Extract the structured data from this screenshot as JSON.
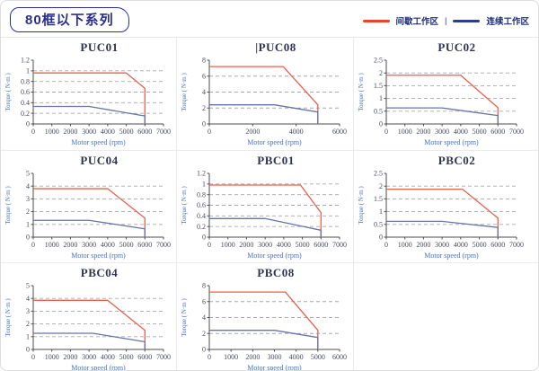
{
  "header": {
    "series_badge": "80框以下系列"
  },
  "legend": {
    "intermittent_label": "间歇工作区",
    "separator": "|",
    "continuous_label": "连续工作区",
    "intermittent_color": "#e8432c",
    "continuous_color": "#27408b"
  },
  "colors": {
    "accent_navy": "#2b2f90",
    "axis_label_blue": "#4472c4",
    "tick_label": "#474b5e",
    "axis_line": "#4d4d4d",
    "grid_dash": "#a9a9a9",
    "red_line": "#e8604a",
    "blue_line": "#6674a8"
  },
  "chart_data": [
    {
      "type": "line",
      "title": "PUC01",
      "title_prefix": "",
      "xlabel": "Motor speed (rpm)",
      "ylabel": "Torque ( N·m )",
      "xlim": [
        0,
        7000
      ],
      "ylim": [
        0,
        1.2
      ],
      "xticks": [
        0,
        1000,
        2000,
        3000,
        4000,
        5000,
        6000,
        7000
      ],
      "yticks": [
        0,
        0.2,
        0.4,
        0.6,
        0.8,
        1,
        1.2
      ],
      "series": [
        {
          "name": "间歇工作区",
          "color": "#e8604a",
          "points": [
            [
              0,
              0.96
            ],
            [
              5000,
              0.96
            ],
            [
              6000,
              0.67
            ],
            [
              6000,
              0
            ]
          ]
        },
        {
          "name": "连续工作区",
          "color": "#6674a8",
          "points": [
            [
              0,
              0.33
            ],
            [
              3000,
              0.33
            ],
            [
              6000,
              0.15
            ],
            [
              6000,
              0
            ]
          ]
        }
      ]
    },
    {
      "type": "line",
      "title": "PUC08",
      "title_prefix": "|",
      "xlabel": "Motor speed (rpm)",
      "ylabel": "Torque ( N·m )",
      "xlim": [
        0,
        6000
      ],
      "ylim": [
        0,
        8
      ],
      "xticks": [
        0,
        2000,
        4000,
        6000
      ],
      "yticks": [
        0,
        2,
        4,
        6,
        8
      ],
      "series": [
        {
          "name": "间歇工作区",
          "color": "#e8604a",
          "points": [
            [
              0,
              7.2
            ],
            [
              3400,
              7.2
            ],
            [
              5000,
              2.4
            ],
            [
              5000,
              0
            ]
          ]
        },
        {
          "name": "连续工作区",
          "color": "#6674a8",
          "points": [
            [
              0,
              2.4
            ],
            [
              3000,
              2.4
            ],
            [
              5000,
              1.5
            ],
            [
              5000,
              0
            ]
          ]
        }
      ]
    },
    {
      "type": "line",
      "title": "PUC02",
      "title_prefix": "",
      "xlabel": "Motor speed (rpm)",
      "ylabel": "Torque ( N·m )",
      "xlim": [
        0,
        7000
      ],
      "ylim": [
        0,
        2.5
      ],
      "xticks": [
        0,
        1000,
        2000,
        3000,
        4000,
        5000,
        6000,
        7000
      ],
      "yticks": [
        0,
        0.5,
        1,
        1.5,
        2,
        2.5
      ],
      "series": [
        {
          "name": "间歇工作区",
          "color": "#e8604a",
          "points": [
            [
              0,
              1.91
            ],
            [
              4000,
              1.91
            ],
            [
              6000,
              0.64
            ],
            [
              6000,
              0
            ]
          ]
        },
        {
          "name": "连续工作区",
          "color": "#6674a8",
          "points": [
            [
              0,
              0.63
            ],
            [
              3000,
              0.63
            ],
            [
              6000,
              0.33
            ],
            [
              6000,
              0
            ]
          ]
        }
      ]
    },
    {
      "type": "line",
      "title": "PUC04",
      "title_prefix": "",
      "xlabel": "Motor speed (rpm)",
      "ylabel": "Torque ( N·m )",
      "xlim": [
        0,
        7000
      ],
      "ylim": [
        0,
        5
      ],
      "xticks": [
        0,
        1000,
        2000,
        3000,
        4000,
        5000,
        6000,
        7000
      ],
      "yticks": [
        0,
        1,
        2,
        3,
        4,
        5
      ],
      "series": [
        {
          "name": "间歇工作区",
          "color": "#e8604a",
          "points": [
            [
              0,
              3.8
            ],
            [
              4000,
              3.8
            ],
            [
              6000,
              1.5
            ],
            [
              6000,
              0
            ]
          ]
        },
        {
          "name": "连续工作区",
          "color": "#6674a8",
          "points": [
            [
              0,
              1.32
            ],
            [
              3000,
              1.32
            ],
            [
              6000,
              0.65
            ],
            [
              6000,
              0
            ]
          ]
        }
      ]
    },
    {
      "type": "line",
      "title": "PBC01",
      "title_prefix": "",
      "xlabel": "Motor speed (rpm)",
      "ylabel": "Torque ( N·m )",
      "xlim": [
        0,
        7000
      ],
      "ylim": [
        0,
        1.2
      ],
      "xticks": [
        0,
        1000,
        2000,
        3000,
        4000,
        5000,
        6000,
        7000
      ],
      "yticks": [
        0,
        0.2,
        0.4,
        0.6,
        0.8,
        1,
        1.2
      ],
      "series": [
        {
          "name": "间歇工作区",
          "color": "#e8604a",
          "points": [
            [
              0,
              0.98
            ],
            [
              4900,
              0.98
            ],
            [
              6000,
              0.46
            ],
            [
              6000,
              0
            ]
          ]
        },
        {
          "name": "连续工作区",
          "color": "#6674a8",
          "points": [
            [
              0,
              0.35
            ],
            [
              3000,
              0.35
            ],
            [
              6000,
              0.13
            ],
            [
              6000,
              0
            ]
          ]
        }
      ]
    },
    {
      "type": "line",
      "title": "PBC02",
      "title_prefix": "",
      "xlabel": "Motor speed (rpm)",
      "ylabel": "Torque ( N·m )",
      "xlim": [
        0,
        7000
      ],
      "ylim": [
        0,
        2.5
      ],
      "xticks": [
        0,
        1000,
        2000,
        3000,
        4000,
        5000,
        6000,
        7000
      ],
      "yticks": [
        0,
        0.5,
        1,
        1.5,
        2,
        2.5
      ],
      "series": [
        {
          "name": "间歇工作区",
          "color": "#e8604a",
          "points": [
            [
              0,
              1.88
            ],
            [
              4100,
              1.88
            ],
            [
              6000,
              0.75
            ],
            [
              6000,
              0
            ]
          ]
        },
        {
          "name": "连续工作区",
          "color": "#6674a8",
          "points": [
            [
              0,
              0.62
            ],
            [
              3000,
              0.62
            ],
            [
              6000,
              0.38
            ],
            [
              6000,
              0
            ]
          ]
        }
      ]
    },
    {
      "type": "line",
      "title": "PBC04",
      "title_prefix": "",
      "xlabel": "Motor speed (rpm)",
      "ylabel": "Torque ( N·m )",
      "xlim": [
        0,
        7000
      ],
      "ylim": [
        0,
        5
      ],
      "xticks": [
        0,
        1000,
        2000,
        3000,
        4000,
        5000,
        6000,
        7000
      ],
      "yticks": [
        0,
        1,
        2,
        3,
        4,
        5
      ],
      "series": [
        {
          "name": "间歇工作区",
          "color": "#e8604a",
          "points": [
            [
              0,
              3.85
            ],
            [
              4000,
              3.85
            ],
            [
              6000,
              1.5
            ],
            [
              6000,
              0
            ]
          ]
        },
        {
          "name": "连续工作区",
          "color": "#6674a8",
          "points": [
            [
              0,
              1.27
            ],
            [
              3200,
              1.27
            ],
            [
              6000,
              0.6
            ],
            [
              6000,
              0
            ]
          ]
        }
      ]
    },
    {
      "type": "line",
      "title": "PBC08",
      "title_prefix": "",
      "xlabel": "Motor speed (rpm)",
      "ylabel": "Torque ( N·m )",
      "xlim": [
        0,
        6000
      ],
      "ylim": [
        0,
        8
      ],
      "xticks": [
        0,
        1000,
        2000,
        3000,
        4000,
        5000,
        6000
      ],
      "yticks": [
        0,
        2,
        4,
        6,
        8
      ],
      "series": [
        {
          "name": "间歇工作区",
          "color": "#e8604a",
          "points": [
            [
              0,
              7.2
            ],
            [
              3500,
              7.2
            ],
            [
              5000,
              2.4
            ],
            [
              5000,
              0
            ]
          ]
        },
        {
          "name": "连续工作区",
          "color": "#6674a8",
          "points": [
            [
              0,
              2.4
            ],
            [
              3000,
              2.4
            ],
            [
              5000,
              1.5
            ],
            [
              5000,
              0
            ]
          ]
        }
      ]
    }
  ]
}
